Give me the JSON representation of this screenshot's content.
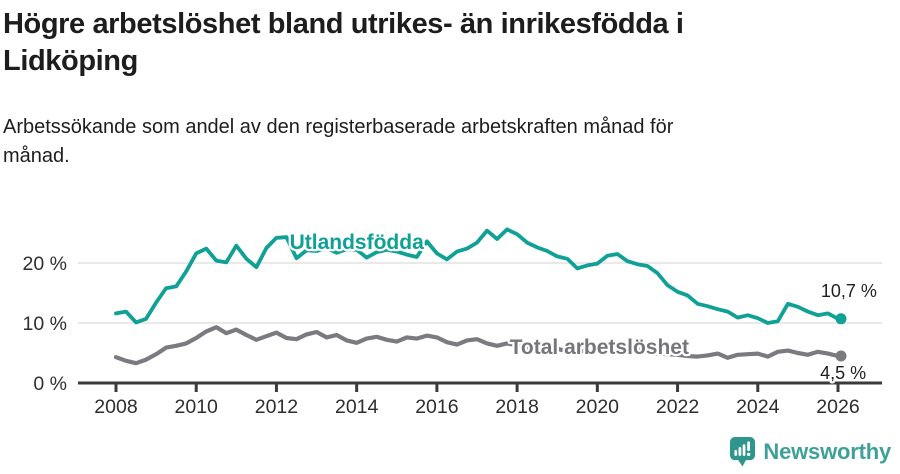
{
  "title": {
    "line1": "Högre arbetslöshet bland utrikes- än inrikesfödda i",
    "line2": "Lidköping"
  },
  "subtitle": {
    "line1": "Arbetssökande som andel av den registerbaserade arbetskraften månad för",
    "line2": "månad."
  },
  "footer": {
    "brand": "Newsworthy"
  },
  "colors": {
    "teal": "#0fa096",
    "gray": "#7b7a80",
    "gray_label": "#76757b",
    "value_label": "#1f1f1f",
    "axis": "#3b3b3b",
    "axis_text": "#2e2e2e",
    "grid": "#dcdcdc",
    "logo_teal": "#2f968e"
  },
  "chart_data": {
    "type": "line",
    "title": "Högre arbetslöshet bland utrikes- än inrikesfödda i Lidköping",
    "subtitle": "Arbetssökande som andel av den registerbaserade arbetskraften månad för månad.",
    "xlabel": "",
    "ylabel": "",
    "xlim": [
      2007.05,
      2027.1
    ],
    "ylim": [
      0,
      27
    ],
    "grid": "horizontal",
    "legend": "inline-labels",
    "x_ticks": [
      2008,
      2010,
      2012,
      2014,
      2016,
      2018,
      2020,
      2022,
      2024,
      2026
    ],
    "y_ticks": [
      {
        "value": 0,
        "label": "0 %"
      },
      {
        "value": 10,
        "label": "10 %"
      },
      {
        "value": 20,
        "label": "20 %"
      }
    ],
    "series": [
      {
        "name": "Utlandsfödda",
        "color_key": "teal",
        "end_value_label": "10,7 %",
        "end_value": 10.7,
        "points": [
          [
            2008.0,
            11.6
          ],
          [
            2008.25,
            11.9
          ],
          [
            2008.5,
            10.1
          ],
          [
            2008.75,
            10.7
          ],
          [
            2009.0,
            13.4
          ],
          [
            2009.25,
            15.8
          ],
          [
            2009.5,
            16.1
          ],
          [
            2009.75,
            18.6
          ],
          [
            2010.0,
            21.6
          ],
          [
            2010.25,
            22.4
          ],
          [
            2010.5,
            20.4
          ],
          [
            2010.75,
            20.1
          ],
          [
            2011.0,
            22.9
          ],
          [
            2011.25,
            20.7
          ],
          [
            2011.5,
            19.3
          ],
          [
            2011.75,
            22.5
          ],
          [
            2012.0,
            24.2
          ],
          [
            2012.25,
            24.3
          ],
          [
            2012.5,
            20.8
          ],
          [
            2012.75,
            22.1
          ],
          [
            2013.0,
            22.0
          ],
          [
            2013.25,
            22.5
          ],
          [
            2013.5,
            21.7
          ],
          [
            2013.75,
            22.3
          ],
          [
            2014.0,
            22.2
          ],
          [
            2014.25,
            20.9
          ],
          [
            2014.5,
            21.8
          ],
          [
            2014.75,
            22.2
          ],
          [
            2015.0,
            21.9
          ],
          [
            2015.25,
            21.4
          ],
          [
            2015.5,
            21.0
          ],
          [
            2015.75,
            23.6
          ],
          [
            2016.0,
            21.6
          ],
          [
            2016.25,
            20.6
          ],
          [
            2016.5,
            21.9
          ],
          [
            2016.75,
            22.4
          ],
          [
            2017.0,
            23.4
          ],
          [
            2017.25,
            25.4
          ],
          [
            2017.5,
            24.0
          ],
          [
            2017.75,
            25.6
          ],
          [
            2018.0,
            24.8
          ],
          [
            2018.25,
            23.4
          ],
          [
            2018.5,
            22.6
          ],
          [
            2018.75,
            22.0
          ],
          [
            2019.0,
            21.1
          ],
          [
            2019.25,
            20.7
          ],
          [
            2019.5,
            19.1
          ],
          [
            2019.75,
            19.6
          ],
          [
            2020.0,
            19.9
          ],
          [
            2020.25,
            21.2
          ],
          [
            2020.5,
            21.5
          ],
          [
            2020.75,
            20.3
          ],
          [
            2021.0,
            19.8
          ],
          [
            2021.25,
            19.5
          ],
          [
            2021.5,
            18.3
          ],
          [
            2021.75,
            16.3
          ],
          [
            2022.0,
            15.2
          ],
          [
            2022.25,
            14.6
          ],
          [
            2022.5,
            13.2
          ],
          [
            2022.75,
            12.8
          ],
          [
            2023.0,
            12.3
          ],
          [
            2023.25,
            11.9
          ],
          [
            2023.5,
            10.9
          ],
          [
            2023.75,
            11.3
          ],
          [
            2024.0,
            10.8
          ],
          [
            2024.25,
            10.0
          ],
          [
            2024.5,
            10.3
          ],
          [
            2024.75,
            13.2
          ],
          [
            2025.0,
            12.7
          ],
          [
            2025.25,
            11.9
          ],
          [
            2025.5,
            11.3
          ],
          [
            2025.75,
            11.6
          ],
          [
            2026.0,
            10.7
          ]
        ]
      },
      {
        "name": "Total arbetslöshet",
        "color_key": "gray",
        "end_value_label": "4,5 %",
        "end_value": 4.5,
        "points": [
          [
            2008.0,
            4.3
          ],
          [
            2008.25,
            3.7
          ],
          [
            2008.5,
            3.3
          ],
          [
            2008.75,
            3.9
          ],
          [
            2009.0,
            4.8
          ],
          [
            2009.25,
            5.9
          ],
          [
            2009.5,
            6.2
          ],
          [
            2009.75,
            6.6
          ],
          [
            2010.0,
            7.5
          ],
          [
            2010.25,
            8.6
          ],
          [
            2010.5,
            9.3
          ],
          [
            2010.75,
            8.3
          ],
          [
            2011.0,
            8.9
          ],
          [
            2011.25,
            8.0
          ],
          [
            2011.5,
            7.2
          ],
          [
            2011.75,
            7.8
          ],
          [
            2012.0,
            8.4
          ],
          [
            2012.25,
            7.5
          ],
          [
            2012.5,
            7.3
          ],
          [
            2012.75,
            8.1
          ],
          [
            2013.0,
            8.5
          ],
          [
            2013.25,
            7.6
          ],
          [
            2013.5,
            8.0
          ],
          [
            2013.75,
            7.1
          ],
          [
            2014.0,
            6.7
          ],
          [
            2014.25,
            7.4
          ],
          [
            2014.5,
            7.7
          ],
          [
            2014.75,
            7.2
          ],
          [
            2015.0,
            6.9
          ],
          [
            2015.25,
            7.6
          ],
          [
            2015.5,
            7.4
          ],
          [
            2015.75,
            7.9
          ],
          [
            2016.0,
            7.6
          ],
          [
            2016.25,
            6.8
          ],
          [
            2016.5,
            6.4
          ],
          [
            2016.75,
            7.1
          ],
          [
            2017.0,
            7.3
          ],
          [
            2017.25,
            6.6
          ],
          [
            2017.5,
            6.2
          ],
          [
            2017.75,
            6.6
          ],
          [
            2018.0,
            6.3
          ],
          [
            2018.25,
            5.8
          ],
          [
            2018.5,
            5.5
          ],
          [
            2018.75,
            5.9
          ],
          [
            2019.0,
            5.7
          ],
          [
            2019.25,
            5.3
          ],
          [
            2019.5,
            5.1
          ],
          [
            2019.75,
            5.5
          ],
          [
            2020.0,
            5.8
          ],
          [
            2020.25,
            6.3
          ],
          [
            2020.5,
            6.1
          ],
          [
            2020.75,
            5.8
          ],
          [
            2021.0,
            5.6
          ],
          [
            2021.25,
            5.2
          ],
          [
            2021.5,
            4.9
          ],
          [
            2021.75,
            4.8
          ],
          [
            2022.0,
            4.7
          ],
          [
            2022.25,
            4.5
          ],
          [
            2022.5,
            4.4
          ],
          [
            2022.75,
            4.6
          ],
          [
            2023.0,
            4.9
          ],
          [
            2023.25,
            4.2
          ],
          [
            2023.5,
            4.7
          ],
          [
            2023.75,
            4.8
          ],
          [
            2024.0,
            4.9
          ],
          [
            2024.25,
            4.4
          ],
          [
            2024.5,
            5.2
          ],
          [
            2024.75,
            5.4
          ],
          [
            2025.0,
            5.0
          ],
          [
            2025.25,
            4.7
          ],
          [
            2025.5,
            5.2
          ],
          [
            2025.75,
            4.9
          ],
          [
            2026.0,
            4.5
          ]
        ]
      }
    ],
    "annotations": [
      {
        "text": "Utlandsfödda",
        "x": 2014.0,
        "y": 22.3,
        "anchor": "middle",
        "style": "series-teal"
      },
      {
        "text": "Total arbetslöshet",
        "x": 2020.05,
        "y": 4.8,
        "anchor": "middle",
        "style": "series-gray"
      },
      {
        "text": "10,7 %",
        "x": 2026.97,
        "y": 14.3,
        "anchor": "end",
        "style": "value"
      },
      {
        "text": "4,5 %",
        "x": 2026.7,
        "y": 0.7,
        "anchor": "end",
        "style": "value"
      }
    ]
  }
}
